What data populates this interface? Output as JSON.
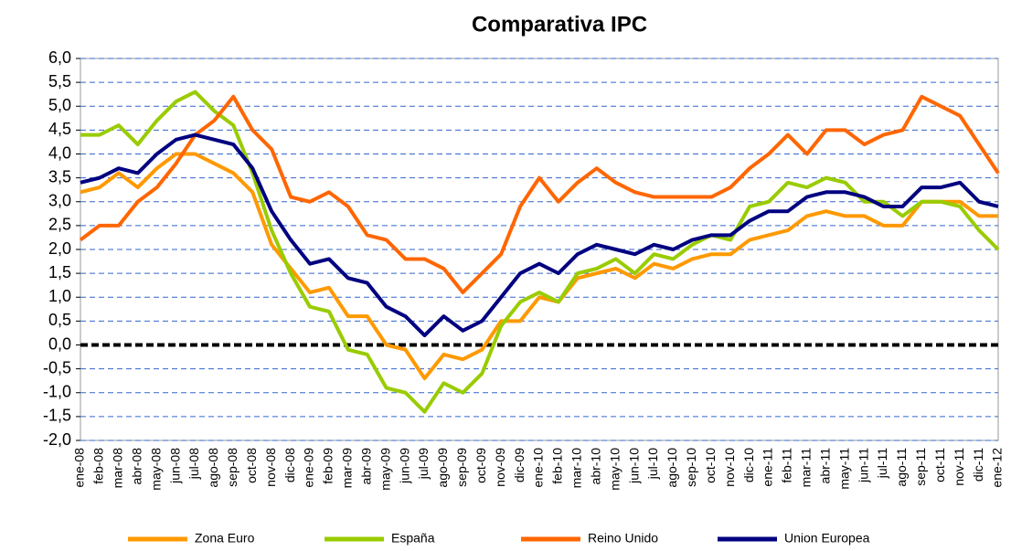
{
  "chart_data": {
    "type": "line",
    "title": "Comparativa IPC",
    "categories": [
      "ene-08",
      "feb-08",
      "mar-08",
      "abr-08",
      "may-08",
      "jun-08",
      "jul-08",
      "ago-08",
      "sep-08",
      "oct-08",
      "nov-08",
      "dic-08",
      "ene-09",
      "feb-09",
      "mar-09",
      "abr-09",
      "may-09",
      "jun-09",
      "jul-09",
      "ago-09",
      "sep-09",
      "oct-09",
      "nov-09",
      "dic-09",
      "ene-10",
      "feb-10",
      "mar-10",
      "abr-10",
      "may-10",
      "jun-10",
      "jul-10",
      "ago-10",
      "sep-10",
      "oct-10",
      "nov-10",
      "dic-10",
      "ene-11",
      "feb-11",
      "mar-11",
      "abr-11",
      "may-11",
      "jun-11",
      "jul-11",
      "ago-11",
      "sep-11",
      "oct-11",
      "nov-11",
      "dic-11",
      "ene-12"
    ],
    "series": [
      {
        "name": "Zona Euro",
        "color": "#ff9900",
        "values": [
          3.2,
          3.3,
          3.6,
          3.3,
          3.7,
          4.0,
          4.0,
          3.8,
          3.6,
          3.2,
          2.1,
          1.6,
          1.1,
          1.2,
          0.6,
          0.6,
          0.0,
          -0.1,
          -0.7,
          -0.2,
          -0.3,
          -0.1,
          0.5,
          0.5,
          1.0,
          0.9,
          1.4,
          1.5,
          1.6,
          1.4,
          1.7,
          1.6,
          1.8,
          1.9,
          1.9,
          2.2,
          2.3,
          2.4,
          2.7,
          2.8,
          2.7,
          2.7,
          2.5,
          2.5,
          3.0,
          3.0,
          3.0,
          2.7,
          2.7
        ]
      },
      {
        "name": "España",
        "color": "#99cc00",
        "values": [
          4.4,
          4.4,
          4.6,
          4.2,
          4.7,
          5.1,
          5.3,
          4.9,
          4.6,
          3.6,
          2.4,
          1.5,
          0.8,
          0.7,
          -0.1,
          -0.2,
          -0.9,
          -1.0,
          -1.4,
          -0.8,
          -1.0,
          -0.6,
          0.4,
          0.9,
          1.1,
          0.9,
          1.5,
          1.6,
          1.8,
          1.5,
          1.9,
          1.8,
          2.1,
          2.3,
          2.2,
          2.9,
          3.0,
          3.4,
          3.3,
          3.5,
          3.4,
          3.0,
          3.0,
          2.7,
          3.0,
          3.0,
          2.9,
          2.4,
          2.0
        ]
      },
      {
        "name": "Reino Unido",
        "color": "#ff6600",
        "values": [
          2.2,
          2.5,
          2.5,
          3.0,
          3.3,
          3.8,
          4.4,
          4.7,
          5.2,
          4.5,
          4.1,
          3.1,
          3.0,
          3.2,
          2.9,
          2.3,
          2.2,
          1.8,
          1.8,
          1.6,
          1.1,
          1.5,
          1.9,
          2.9,
          3.5,
          3.0,
          3.4,
          3.7,
          3.4,
          3.2,
          3.1,
          3.1,
          3.1,
          3.1,
          3.3,
          3.7,
          4.0,
          4.4,
          4.0,
          4.5,
          4.5,
          4.2,
          4.4,
          4.5,
          5.2,
          5.0,
          4.8,
          4.2,
          3.6
        ]
      },
      {
        "name": "Union Europea",
        "color": "#000080",
        "values": [
          3.4,
          3.5,
          3.7,
          3.6,
          4.0,
          4.3,
          4.4,
          4.3,
          4.2,
          3.7,
          2.8,
          2.2,
          1.7,
          1.8,
          1.4,
          1.3,
          0.8,
          0.6,
          0.2,
          0.6,
          0.3,
          0.5,
          1.0,
          1.5,
          1.7,
          1.5,
          1.9,
          2.1,
          2.0,
          1.9,
          2.1,
          2.0,
          2.2,
          2.3,
          2.3,
          2.6,
          2.8,
          2.8,
          3.1,
          3.2,
          3.2,
          3.1,
          2.9,
          2.9,
          3.3,
          3.3,
          3.4,
          3.0,
          2.9
        ]
      }
    ],
    "ylim": [
      -2,
      6
    ],
    "yticks": [
      {
        "value": -2,
        "label": "-2,0"
      },
      {
        "value": -1.5,
        "label": "-1,5"
      },
      {
        "value": -1,
        "label": "-1,0"
      },
      {
        "value": -0.5,
        "label": "-0,5"
      },
      {
        "value": 0,
        "label": "0,0"
      },
      {
        "value": 0.5,
        "label": "0,5"
      },
      {
        "value": 1,
        "label": "1,0"
      },
      {
        "value": 1.5,
        "label": "1,5"
      },
      {
        "value": 2,
        "label": "2,0"
      },
      {
        "value": 2.5,
        "label": "2,5"
      },
      {
        "value": 3,
        "label": "3,0"
      },
      {
        "value": 3.5,
        "label": "3,5"
      },
      {
        "value": 4,
        "label": "4,0"
      },
      {
        "value": 4.5,
        "label": "4,5"
      },
      {
        "value": 5,
        "label": "5,0"
      },
      {
        "value": 5.5,
        "label": "5,5"
      },
      {
        "value": 6,
        "label": "6,0"
      }
    ],
    "grid": true
  }
}
